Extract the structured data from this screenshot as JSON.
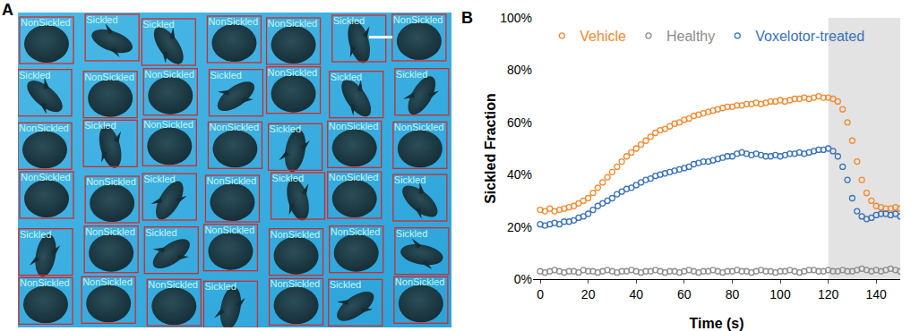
{
  "panel_a": {
    "panel_label": "A",
    "cells": [
      "NonSickled",
      "Sickled",
      "Sickled",
      "NonSickled",
      "NonSickled",
      "Sickled",
      "NonSickled",
      "Sickled",
      "NonSickled",
      "NonSickled",
      "Sickled",
      "NonSickled",
      "Sickled",
      "Sickled",
      "NonSickled",
      "Sickled",
      "NonSickled",
      "NonSickled",
      "Sickled",
      "NonSickled",
      "NonSickled",
      "NonSickled",
      "NonSickled",
      "Sickled",
      "NonSickled",
      "Sickled",
      "NonSickled",
      "Sickled",
      "Sickled",
      "NonSickled",
      "Sickled",
      "NonSickled",
      "NonSickled",
      "NonSickled",
      "Sickled",
      "NonSickled",
      "NonSickled",
      "NonSickled",
      "Sickled",
      "NonSickled",
      "Sickled",
      "NonSickled"
    ]
  },
  "chart_data": {
    "type": "scatter",
    "panel_label": "B",
    "marker": "circle-open",
    "x_label": "Time (s)",
    "y_label": "Sickled Fraction",
    "x": [
      0,
      2,
      4,
      6,
      8,
      10,
      12,
      14,
      16,
      18,
      20,
      22,
      24,
      26,
      28,
      30,
      32,
      34,
      36,
      38,
      40,
      42,
      44,
      46,
      48,
      50,
      52,
      54,
      56,
      58,
      60,
      62,
      64,
      66,
      68,
      70,
      72,
      74,
      76,
      78,
      80,
      82,
      84,
      86,
      88,
      90,
      92,
      94,
      96,
      98,
      100,
      102,
      104,
      106,
      108,
      110,
      112,
      114,
      116,
      118,
      120,
      122,
      124,
      126,
      128,
      130,
      132,
      134,
      136,
      138,
      140,
      142,
      144,
      146,
      148,
      150
    ],
    "series": [
      {
        "name": "Vehicle",
        "color": "#f28a30",
        "values": [
          26.5,
          26,
          27,
          26,
          26.5,
          27,
          27.5,
          28,
          29,
          30,
          31,
          33,
          35,
          37,
          39,
          41,
          43,
          45,
          47,
          48.5,
          50,
          51.5,
          53,
          54.5,
          56,
          57,
          57.5,
          58.5,
          59.5,
          60,
          61,
          61.5,
          62.5,
          63,
          63.5,
          64,
          64.5,
          65,
          65.5,
          66,
          66,
          66.5,
          66.5,
          67,
          67,
          67.5,
          67,
          67.5,
          68,
          68,
          68.5,
          68,
          68.5,
          69,
          69,
          69.5,
          69,
          69.5,
          70,
          69.5,
          69.5,
          69,
          68,
          65,
          60,
          53,
          45,
          38,
          33,
          30,
          28,
          27.5,
          27,
          27,
          27.5,
          27
        ]
      },
      {
        "name": "Healthy",
        "color": "#8c8c8c",
        "values": [
          3,
          2.5,
          3,
          3.5,
          3,
          2.5,
          3,
          3,
          2.5,
          3.5,
          3,
          3,
          2.5,
          3,
          3.5,
          3,
          2.5,
          3,
          3,
          3.5,
          3,
          2.5,
          3,
          3,
          3.5,
          3,
          2.5,
          3,
          3,
          2.5,
          3,
          3.5,
          3,
          2.5,
          3,
          3,
          3.5,
          3,
          2.5,
          3,
          3,
          3.5,
          3,
          3,
          2.5,
          3,
          3.5,
          3,
          3,
          2.5,
          3,
          3,
          3.5,
          3,
          2.5,
          3,
          3.5,
          3.5,
          3,
          3,
          3.5,
          3,
          3,
          3.5,
          3,
          3,
          3.5,
          4,
          3.5,
          3,
          3.5,
          3,
          3.5,
          4,
          3.5,
          3
        ]
      },
      {
        "name": "Voxelotor-treated",
        "color": "#3a72b8",
        "values": [
          21,
          20.5,
          21,
          21.5,
          21,
          22,
          22,
          22.5,
          23.5,
          24,
          25,
          26.5,
          28,
          29,
          30,
          31,
          32.5,
          33.5,
          34.5,
          35,
          36,
          37,
          38,
          38.5,
          39.5,
          40,
          40.5,
          41,
          41.5,
          42,
          42.5,
          43,
          44,
          44.5,
          45,
          45,
          45.5,
          46,
          46.5,
          47,
          47,
          48,
          48.5,
          48,
          47.5,
          48,
          47.5,
          47,
          47,
          47.5,
          47,
          47.5,
          48,
          48,
          48.5,
          48,
          48.5,
          49,
          49.5,
          49.5,
          50,
          49,
          47,
          43,
          38,
          31,
          26,
          24,
          23,
          23.5,
          24.5,
          25,
          25,
          24.5,
          25,
          24
        ]
      }
    ],
    "shaded_region": [
      120,
      150
    ],
    "xlim": [
      -3,
      150
    ],
    "xticks": [
      0,
      20,
      40,
      60,
      80,
      100,
      120,
      140
    ],
    "ylim": [
      0,
      100
    ],
    "yticks": [
      {
        "value": 0,
        "label": "0%"
      },
      {
        "value": 20,
        "label": "20%"
      },
      {
        "value": 40,
        "label": "40%"
      },
      {
        "value": 60,
        "label": "60%"
      },
      {
        "value": 80,
        "label": "80%"
      },
      {
        "value": 100,
        "label": "100%"
      }
    ],
    "grid": false,
    "legend": "top-left"
  }
}
